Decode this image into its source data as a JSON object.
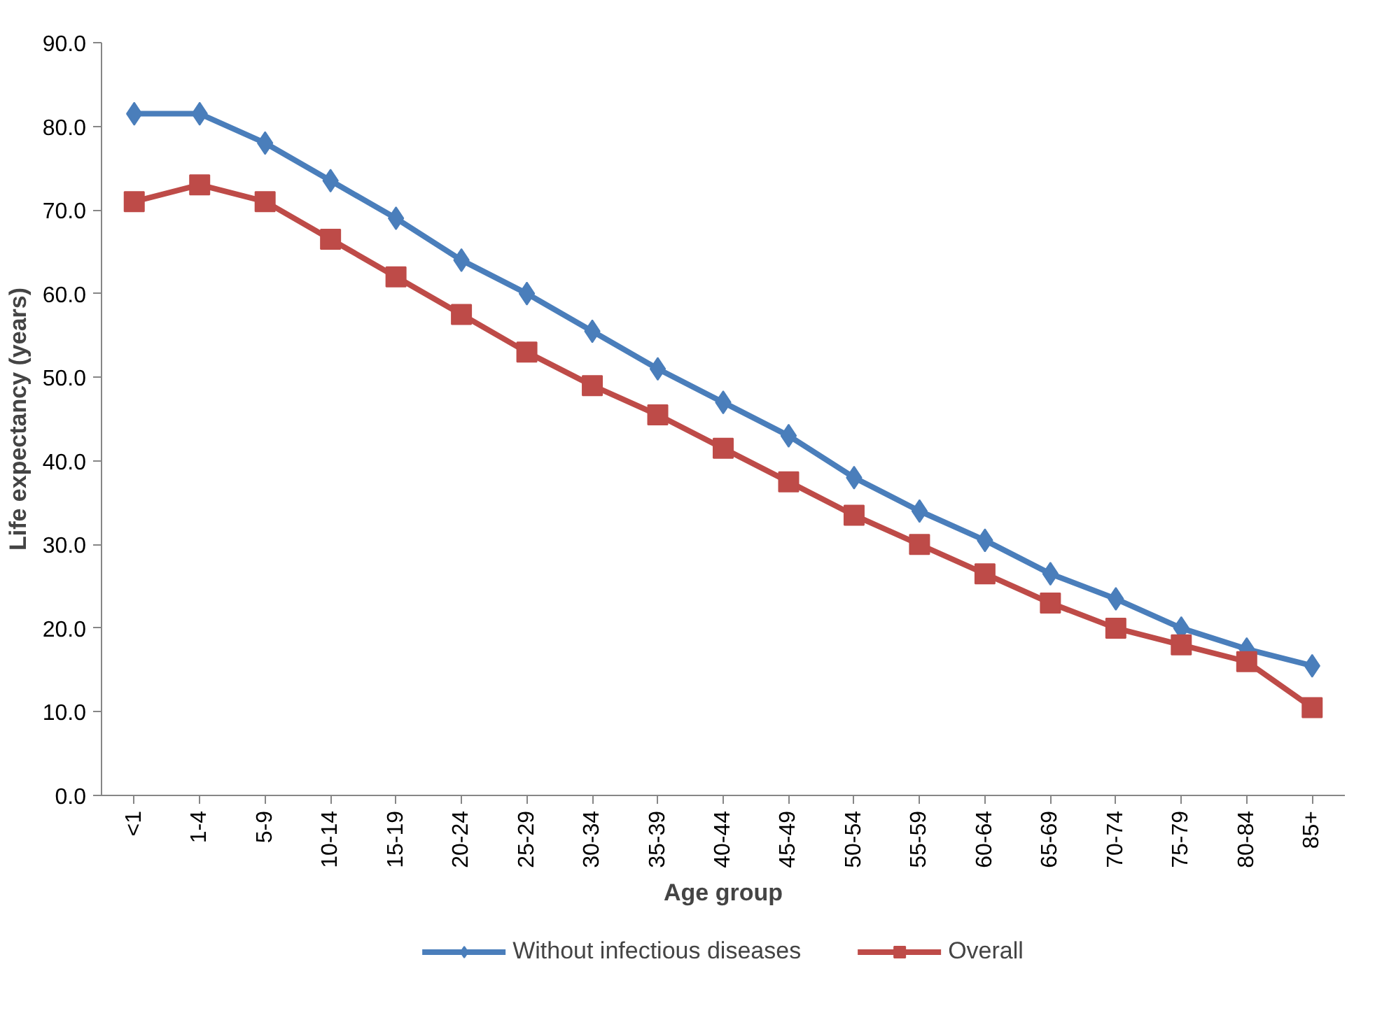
{
  "chart_data": {
    "type": "line",
    "xlabel": "Age group",
    "ylabel": "Life expectancy (years)",
    "categories": [
      "<1",
      "1-4",
      "5-9",
      "10-14",
      "15-19",
      "20-24",
      "25-29",
      "30-34",
      "35-39",
      "40-44",
      "45-49",
      "50-54",
      "55-59",
      "60-64",
      "65-69",
      "70-74",
      "75-79",
      "80-84",
      "85+"
    ],
    "series": [
      {
        "name": "Without infectious diseases",
        "color": "#4a7ebb",
        "marker": "diamond",
        "values": [
          81.5,
          81.5,
          78,
          73.5,
          69,
          64,
          60,
          55.5,
          51,
          47,
          43,
          38,
          34,
          30.5,
          26.5,
          23.5,
          20,
          17.5,
          15.5
        ]
      },
      {
        "name": "Overall",
        "color": "#be4b48",
        "marker": "square",
        "values": [
          71,
          73,
          71,
          66.5,
          62,
          57.5,
          53,
          49,
          45.5,
          41.5,
          37.5,
          33.5,
          30,
          26.5,
          23,
          20,
          18,
          16,
          10.5
        ]
      }
    ],
    "ylim": [
      0,
      90
    ],
    "yticks": [
      {
        "value": 0,
        "label": "0.0"
      },
      {
        "value": 10,
        "label": "10.0"
      },
      {
        "value": 20,
        "label": "20.0"
      },
      {
        "value": 30,
        "label": "30.0"
      },
      {
        "value": 40,
        "label": "40.0"
      },
      {
        "value": 50,
        "label": "50.0"
      },
      {
        "value": 60,
        "label": "60.0"
      },
      {
        "value": 70,
        "label": "70.0"
      },
      {
        "value": 80,
        "label": "80.0"
      },
      {
        "value": 90,
        "label": "90.0"
      }
    ],
    "grid": false,
    "legend": "bottom",
    "line_style": "solid"
  }
}
